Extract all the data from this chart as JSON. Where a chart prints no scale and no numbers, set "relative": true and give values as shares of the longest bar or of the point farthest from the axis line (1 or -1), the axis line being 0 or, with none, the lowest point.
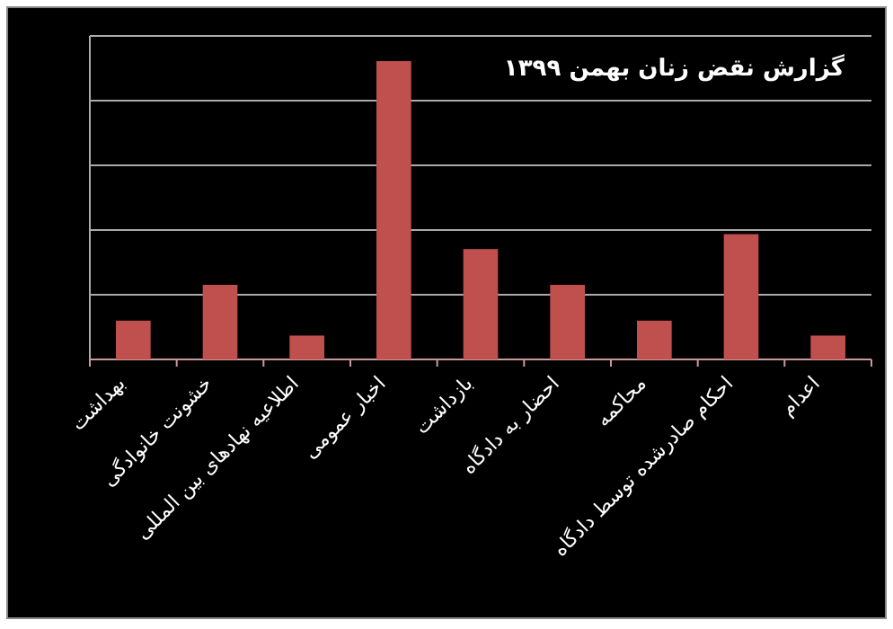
{
  "chart_data": {
    "type": "bar",
    "title": "گزارش نقض زنان بهمن ۱۳۹۹",
    "categories": [
      "بهداشت",
      "خشونت خانوادگی",
      "اطلاعیه نهادهای بین المللی",
      "اخبار عمومی",
      "بازداشت",
      "احضار به دادگاه",
      "محاکمه",
      "احکام صادرشده توسط دادگاه",
      "اعدام"
    ],
    "values": [
      0.13,
      0.25,
      0.08,
      1,
      0.37,
      0.25,
      0.13,
      0.42,
      0.08
    ],
    "color": "#c0504d",
    "relative": true,
    "grid": "y"
  }
}
